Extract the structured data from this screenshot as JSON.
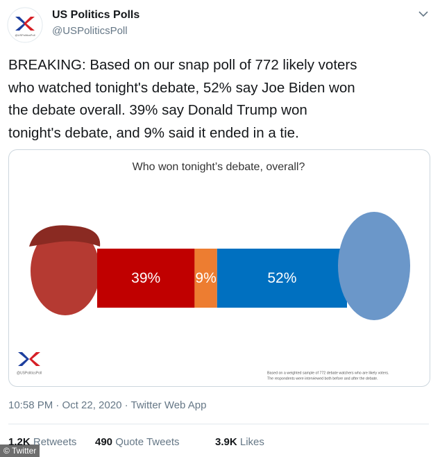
{
  "tweet": {
    "author": "US Politics Polls",
    "handle": "@USPoliticsPoll",
    "text_lines": [
      "BREAKING: Based on our snap poll of 772 likely voters",
      "who watched tonight's debate, 52% say Joe Biden won",
      "the debate overall. 39% say Donald Trump won",
      "tonight's debate, and 9% said it ended in a tie."
    ],
    "timestamp": "10:58 PM · Oct 22, 2020 · Twitter Web App",
    "stats": [
      {
        "count": "1.2K",
        "label": "Retweets"
      },
      {
        "count": "490",
        "label": "Quote Tweets"
      },
      {
        "count": "3.9K",
        "label": "Likes"
      }
    ],
    "watermark": "© Twitter"
  },
  "chart_data": {
    "type": "stacked-bar",
    "title": "Who won tonight’s debate, overall?",
    "values": [
      39,
      9,
      52
    ],
    "value_labels": [
      "39%",
      "9%",
      "52%"
    ],
    "colors": [
      "#c00000",
      "#ed7d31",
      "#0070c0"
    ],
    "logo_label": "@USPoliticsPoll",
    "footnote": [
      "Based on a weighted sample of 772 debate watchers who are likely voters.",
      "The respondents were interviewed both before and after the debate."
    ]
  }
}
